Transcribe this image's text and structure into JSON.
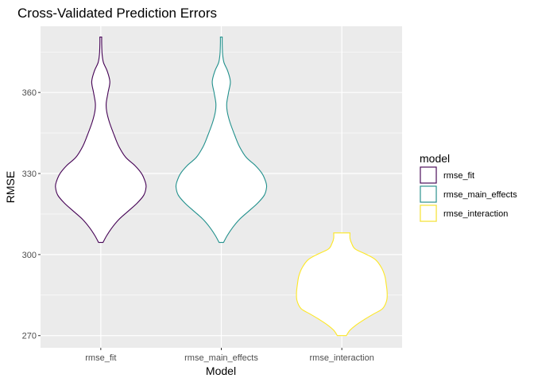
{
  "chart_data": {
    "type": "violin",
    "title": "Cross-Validated Prediction Errors",
    "xlabel": "Model",
    "ylabel": "RMSE",
    "categories": [
      "rmse_fit",
      "rmse_main_effects",
      "rmse_interaction"
    ],
    "ylim": [
      265.5,
      384.5
    ],
    "yticks": [
      270,
      300,
      330,
      360
    ],
    "grid": true,
    "legend": {
      "title": "model",
      "position": "right",
      "entries": [
        "rmse_fit",
        "rmse_main_effects",
        "rmse_interaction"
      ]
    },
    "series": [
      {
        "name": "rmse_fit",
        "color": "#440154",
        "range": [
          304.5,
          380.5
        ],
        "density": [
          [
            380.5,
            0.02
          ],
          [
            378,
            0.02
          ],
          [
            374,
            0.03
          ],
          [
            371,
            0.06
          ],
          [
            368,
            0.14
          ],
          [
            364,
            0.2
          ],
          [
            360,
            0.16
          ],
          [
            356,
            0.12
          ],
          [
            353,
            0.13
          ],
          [
            349,
            0.19
          ],
          [
            344,
            0.3
          ],
          [
            340,
            0.4
          ],
          [
            336,
            0.55
          ],
          [
            333,
            0.75
          ],
          [
            330,
            0.9
          ],
          [
            327,
            0.98
          ],
          [
            325,
            1.0
          ],
          [
            322,
            0.95
          ],
          [
            319,
            0.8
          ],
          [
            316,
            0.6
          ],
          [
            313,
            0.4
          ],
          [
            310,
            0.25
          ],
          [
            307,
            0.13
          ],
          [
            304.5,
            0.05
          ]
        ]
      },
      {
        "name": "rmse_main_effects",
        "color": "#21908C",
        "range": [
          304.5,
          380.5
        ],
        "density": [
          [
            380.5,
            0.02
          ],
          [
            378,
            0.02
          ],
          [
            374,
            0.03
          ],
          [
            371,
            0.06
          ],
          [
            368,
            0.14
          ],
          [
            364,
            0.2
          ],
          [
            360,
            0.16
          ],
          [
            356,
            0.12
          ],
          [
            353,
            0.13
          ],
          [
            349,
            0.19
          ],
          [
            344,
            0.3
          ],
          [
            340,
            0.4
          ],
          [
            336,
            0.55
          ],
          [
            333,
            0.75
          ],
          [
            330,
            0.9
          ],
          [
            327,
            0.98
          ],
          [
            325,
            1.0
          ],
          [
            322,
            0.95
          ],
          [
            319,
            0.8
          ],
          [
            316,
            0.6
          ],
          [
            313,
            0.4
          ],
          [
            310,
            0.25
          ],
          [
            307,
            0.13
          ],
          [
            304.5,
            0.05
          ]
        ]
      },
      {
        "name": "rmse_interaction",
        "color": "#FDE725",
        "range": [
          270,
          308
        ],
        "density": [
          [
            308,
            0.18
          ],
          [
            306,
            0.18
          ],
          [
            304,
            0.22
          ],
          [
            302,
            0.3
          ],
          [
            300,
            0.55
          ],
          [
            298,
            0.75
          ],
          [
            295,
            0.88
          ],
          [
            292,
            0.95
          ],
          [
            289,
            0.98
          ],
          [
            286,
            1.0
          ],
          [
            283,
            0.99
          ],
          [
            280,
            0.9
          ],
          [
            278,
            0.7
          ],
          [
            276,
            0.5
          ],
          [
            274,
            0.32
          ],
          [
            272,
            0.18
          ],
          [
            270,
            0.1
          ]
        ]
      }
    ]
  }
}
